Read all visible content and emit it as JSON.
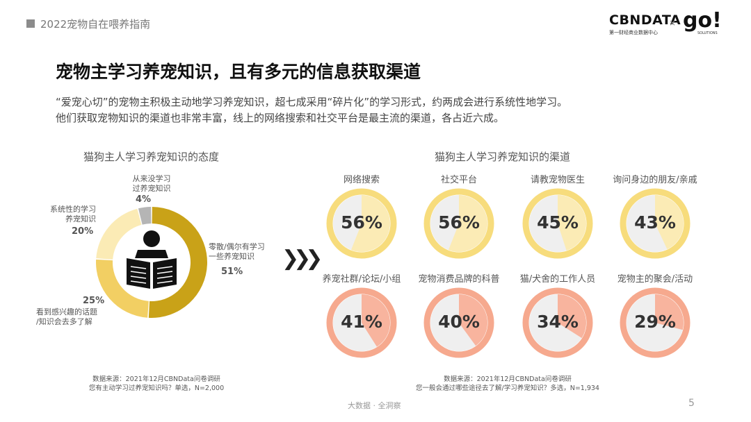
{
  "header": {
    "title": "2022宠物自在喂养指南"
  },
  "logos": {
    "cbn": "CBNDATA",
    "cbn_sub": "第一财经商业数据中心",
    "x": "×",
    "go": "go!",
    "go_sub": "SOLUTIONS"
  },
  "main": {
    "title": "宠物主学习养宠知识，且有多元的信息获取渠道",
    "desc_line1": "“爱宠心切”的宠物主积极主动地学习养宠知识，超七成采用“碎片化”的学习形式，约两成会进行系统性地学习。",
    "desc_line2": "他们获取宠物知识的渠道也非常丰富，线上的网络搜索和社交平台是最主流的渠道，各占近六成。"
  },
  "colors": {
    "gold": "#C9A218",
    "yellow": "#F2CF63",
    "light_yellow": "#FBEBB5",
    "gray": "#B5B5B5",
    "salmon": "#F8B49E",
    "ring_yellow": "#F7DC7C",
    "ring_salmon": "#F6A98E",
    "inner_bg": "#EFEFEF"
  },
  "chart_data": [
    {
      "type": "pie",
      "title": "猫狗主人学习养宠知识的态度",
      "slices": [
        {
          "label": "零散/偶尔有学习一些养宠知识",
          "label_line1": "零散/偶尔有学习",
          "label_line2": "一些养宠知识",
          "value": 51,
          "pct": "51%"
        },
        {
          "label": "看到感兴趣的话题/知识会去多了解",
          "label_line1": "看到感兴趣的话题",
          "label_line2": "/知识会去多了解",
          "value": 25,
          "pct": "25%"
        },
        {
          "label": "系统性的学习养宠知识",
          "label_line1": "系统性的学习",
          "label_line2": "养宠知识",
          "value": 20,
          "pct": "20%"
        },
        {
          "label": "从来没学习过养宠知识",
          "label_line1": "从来没学习",
          "label_line2": "过养宠知识",
          "value": 4,
          "pct": "4%"
        }
      ],
      "icon": "person-reading-icon"
    },
    {
      "type": "pie",
      "title": "猫狗主人学习养宠知识的渠道",
      "items": [
        {
          "label": "网络搜索",
          "value": 56,
          "pct": "56%"
        },
        {
          "label": "社交平台",
          "value": 56,
          "pct": "56%"
        },
        {
          "label": "请教宠物医生",
          "value": 45,
          "pct": "45%"
        },
        {
          "label": "询问身边的朋友/亲戚",
          "value": 43,
          "pct": "43%"
        },
        {
          "label": "养宠社群/论坛/小组",
          "value": 41,
          "pct": "41%"
        },
        {
          "label": "宠物消费品牌的科普",
          "value": 40,
          "pct": "40%"
        },
        {
          "label": "猫/犬舍的工作人员",
          "value": 34,
          "pct": "34%"
        },
        {
          "label": "宠物主的聚会/活动",
          "value": 29,
          "pct": "29%"
        }
      ]
    }
  ],
  "sources": {
    "left_line1": "数据来源：2021年12月CBNData问卷调研",
    "left_line2": "您有主动学习过养宠知识吗？单选，N=2,000",
    "right_line1": "数据来源：2021年12月CBNData问卷调研",
    "right_line2": "您一般会通过哪些途径去了解/学习养宠知识？多选，N=1,934"
  },
  "footer": {
    "text": "大数据 · 全洞察",
    "page": "5"
  },
  "arrow": {
    "glyph": "❯❯❯"
  }
}
